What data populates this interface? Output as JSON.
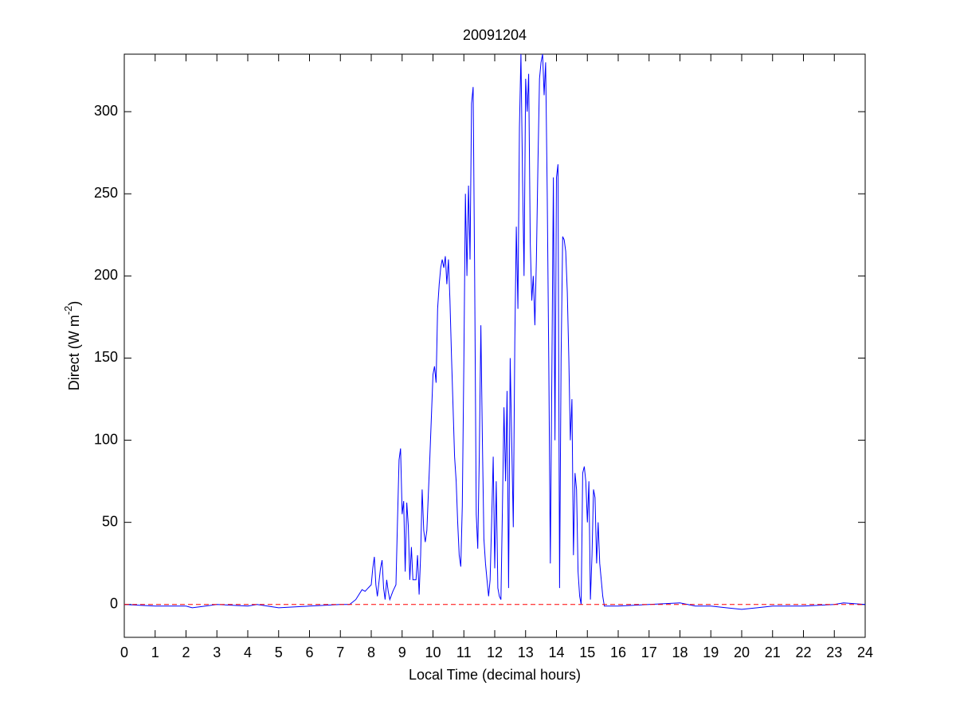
{
  "chart_data": {
    "type": "line",
    "title": "20091204",
    "xlabel": "Local Time (decimal hours)",
    "ylabel": {
      "text": "Direct (W m",
      "sup": "-2",
      "tail": ")"
    },
    "xlim": [
      0,
      24
    ],
    "xticks": [
      0,
      1,
      2,
      3,
      4,
      5,
      6,
      7,
      8,
      9,
      10,
      11,
      12,
      13,
      14,
      15,
      16,
      17,
      18,
      19,
      20,
      21,
      22,
      23,
      24
    ],
    "ylim": [
      -20,
      335
    ],
    "yticks": [
      0,
      50,
      100,
      150,
      200,
      250,
      300
    ],
    "hline": {
      "value": 0,
      "color": "#ff0000"
    },
    "series": [
      {
        "color": "#0000ff",
        "x": [
          0,
          1,
          2,
          2.2,
          3,
          4,
          4.3,
          5,
          6,
          7,
          7.3,
          7.5,
          7.7,
          7.8,
          7.9,
          8.0,
          8.05,
          8.1,
          8.15,
          8.2,
          8.3,
          8.35,
          8.4,
          8.45,
          8.5,
          8.55,
          8.6,
          8.7,
          8.8,
          8.85,
          8.9,
          8.95,
          9.0,
          9.05,
          9.1,
          9.15,
          9.2,
          9.25,
          9.3,
          9.35,
          9.45,
          9.5,
          9.55,
          9.6,
          9.65,
          9.7,
          9.75,
          9.8,
          9.9,
          10.0,
          10.05,
          10.1,
          10.15,
          10.2,
          10.25,
          10.3,
          10.35,
          10.4,
          10.45,
          10.5,
          10.55,
          10.6,
          10.7,
          10.75,
          10.8,
          10.85,
          10.9,
          10.95,
          11.0,
          11.05,
          11.1,
          11.15,
          11.2,
          11.25,
          11.3,
          11.35,
          11.4,
          11.45,
          11.5,
          11.55,
          11.6,
          11.65,
          11.7,
          11.75,
          11.8,
          11.85,
          11.9,
          11.95,
          12.0,
          12.05,
          12.1,
          12.15,
          12.2,
          12.25,
          12.3,
          12.35,
          12.4,
          12.45,
          12.5,
          12.55,
          12.6,
          12.65,
          12.7,
          12.75,
          12.8,
          12.85,
          12.9,
          12.95,
          13.0,
          13.05,
          13.1,
          13.15,
          13.2,
          13.25,
          13.3,
          13.35,
          13.4,
          13.45,
          13.5,
          13.55,
          13.6,
          13.65,
          13.7,
          13.75,
          13.8,
          13.85,
          13.9,
          13.95,
          14.0,
          14.05,
          14.1,
          14.15,
          14.2,
          14.25,
          14.3,
          14.35,
          14.4,
          14.45,
          14.5,
          14.55,
          14.6,
          14.65,
          14.7,
          14.75,
          14.8,
          14.85,
          14.9,
          14.95,
          15.0,
          15.05,
          15.1,
          15.15,
          15.2,
          15.25,
          15.3,
          15.35,
          15.4,
          15.45,
          15.5,
          15.55,
          16,
          17,
          18,
          18.5,
          19,
          19.5,
          20,
          20.5,
          21,
          22,
          23,
          23.3,
          24
        ],
        "values": [
          0,
          -1,
          -1,
          -2,
          0,
          -1,
          0,
          -2,
          -1,
          0,
          0,
          3,
          9,
          8,
          10,
          12,
          22,
          29,
          12,
          5,
          22,
          27,
          10,
          3,
          15,
          8,
          3,
          8,
          12,
          50,
          88,
          95,
          55,
          63,
          20,
          62,
          48,
          15,
          35,
          15,
          15,
          30,
          6,
          30,
          70,
          45,
          38,
          45,
          90,
          140,
          145,
          135,
          180,
          195,
          205,
          210,
          205,
          212,
          195,
          210,
          185,
          150,
          90,
          75,
          50,
          30,
          23,
          60,
          150,
          250,
          200,
          255,
          210,
          305,
          315,
          200,
          55,
          34,
          90,
          170,
          100,
          40,
          25,
          15,
          5,
          15,
          50,
          90,
          22,
          75,
          10,
          5,
          3,
          60,
          120,
          75,
          130,
          10,
          150,
          100,
          47,
          160,
          230,
          180,
          290,
          335,
          260,
          200,
          320,
          300,
          323,
          220,
          185,
          200,
          170,
          210,
          270,
          320,
          330,
          335,
          310,
          330,
          250,
          150,
          25,
          140,
          260,
          100,
          260,
          268,
          10,
          150,
          224,
          222,
          215,
          190,
          150,
          100,
          125,
          30,
          80,
          70,
          20,
          5,
          0,
          80,
          84,
          75,
          50,
          75,
          3,
          30,
          70,
          65,
          25,
          50,
          25,
          15,
          5,
          -1,
          -1,
          0,
          1,
          -1,
          -1,
          -2,
          -3,
          -2,
          -1,
          -1,
          0,
          1,
          0
        ]
      }
    ]
  }
}
